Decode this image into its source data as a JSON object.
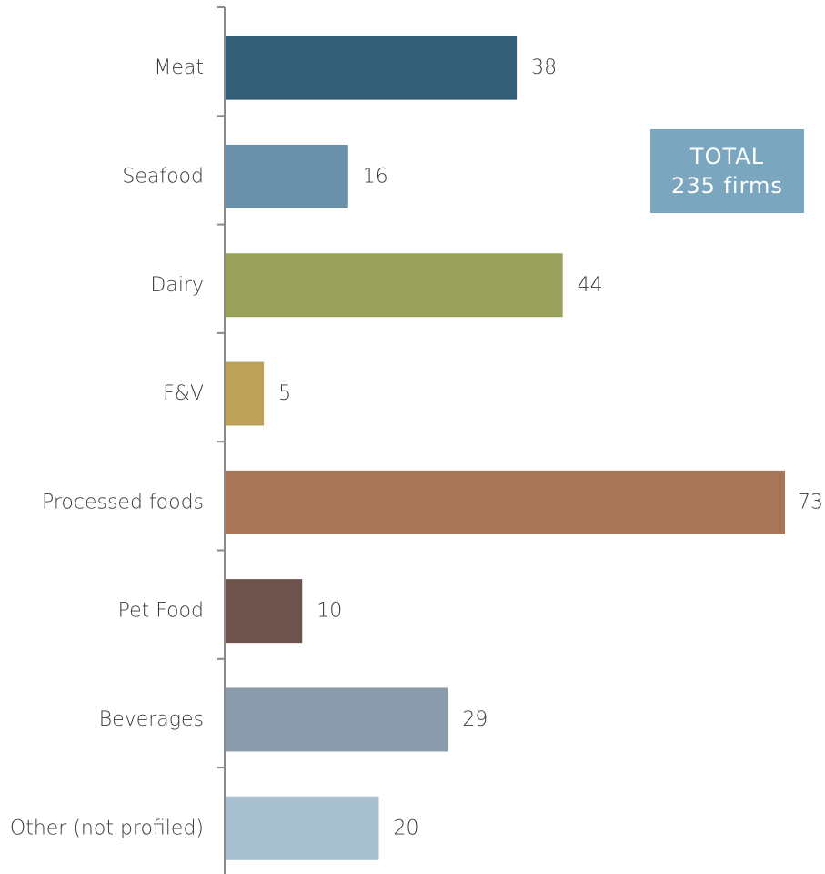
{
  "chart_data": {
    "type": "bar",
    "orientation": "horizontal",
    "categories": [
      "Meat",
      "Seafood",
      "Dairy",
      "F&V",
      "Processed foods",
      "Pet Food",
      "Beverages",
      "Other (not profiled)"
    ],
    "values": [
      38,
      16,
      44,
      5,
      73,
      10,
      29,
      20
    ],
    "colors": [
      "#325e78",
      "#6a91a9",
      "#9aa15a",
      "#bca258",
      "#a87658",
      "#6d534b",
      "#8a9cac",
      "#a8bfd0"
    ],
    "data_labels": [
      "38",
      "16",
      "44",
      "5",
      "73",
      "10",
      "29",
      "20"
    ],
    "xlim": [
      0,
      73
    ],
    "grid": false,
    "legend": "none"
  },
  "callout": {
    "line1": "TOTAL",
    "line2": "235 firms",
    "color": "#7ba6c0"
  },
  "axis_color": "#8a8a8a"
}
